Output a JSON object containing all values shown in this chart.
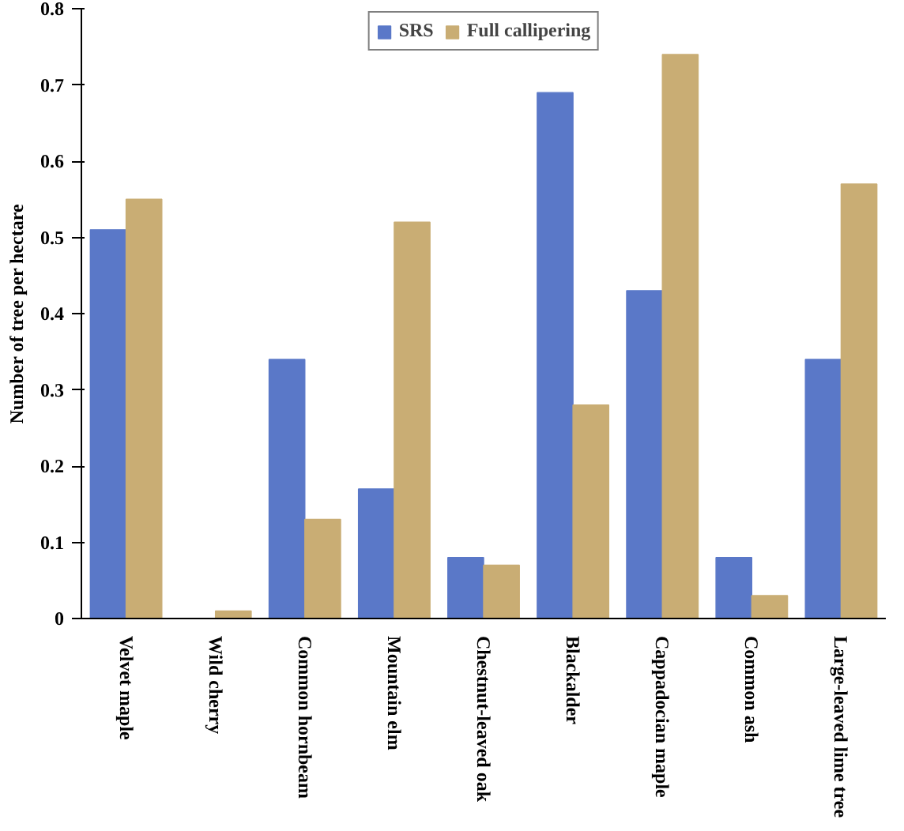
{
  "chart_data": {
    "type": "bar",
    "ylabel": "Number of tree per hectare",
    "categories": [
      "Velvet maple",
      "Wild cherry",
      "Common hornbeam",
      "Mountain elm",
      "Chestnut-leaved oak",
      "Blackalder",
      "Cappadocian maple",
      "Common ash",
      "Large-leaved lime tree"
    ],
    "series": [
      {
        "name": "SRS",
        "color": "#5a78c8",
        "values": [
          0.51,
          0,
          0.34,
          0.17,
          0.08,
          0.69,
          0.43,
          0.08,
          0.34
        ]
      },
      {
        "name": "Full callipering",
        "color": "#c9ad74",
        "values": [
          0.55,
          0.01,
          0.13,
          0.52,
          0.07,
          0.28,
          0.74,
          0.03,
          0.57
        ]
      }
    ],
    "ylim": [
      0,
      0.8
    ],
    "yticks": [
      0,
      0.1,
      0.2,
      0.3,
      0.4,
      0.5,
      0.6,
      0.7,
      0.8
    ],
    "grid": false,
    "legend": "top"
  }
}
